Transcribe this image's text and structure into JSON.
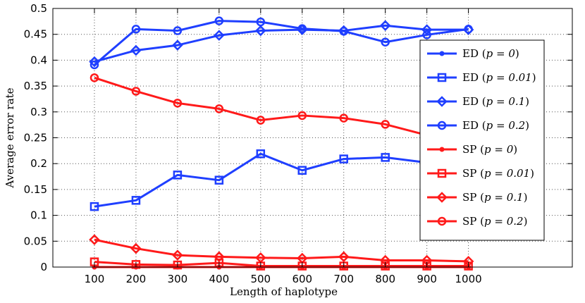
{
  "chart_data": {
    "type": "line",
    "title": "",
    "xlabel": "Length of haplotype",
    "ylabel": "Average error rate",
    "x": [
      100,
      200,
      300,
      400,
      500,
      600,
      700,
      800,
      900,
      1000
    ],
    "xlim": [
      0,
      1250
    ],
    "ylim": [
      0,
      0.5
    ],
    "xticks": [
      "100",
      "200",
      "300",
      "400",
      "500",
      "600",
      "700",
      "800",
      "900",
      "1000"
    ],
    "yticks": [
      "0",
      "0.05",
      "0.1",
      "0.15",
      "0.2",
      "0.25",
      "0.3",
      "0.35",
      "0.4",
      "0.45",
      "0.5"
    ],
    "grid": true,
    "legend_position": "right",
    "series": [
      {
        "name": "ED (p = 0)",
        "label": "ED",
        "param": "p = 0",
        "color": "#1f3fff",
        "marker": "point",
        "values": [
          0.0,
          0.0,
          0.0,
          0.0,
          0.0,
          0.0,
          0.0,
          0.0,
          0.0,
          0.0
        ]
      },
      {
        "name": "ED (p = 0.01)",
        "label": "ED",
        "param": "p = 0.01",
        "color": "#1f3fff",
        "marker": "square",
        "values": [
          0.117,
          0.129,
          0.178,
          0.168,
          0.219,
          0.187,
          0.209,
          0.212,
          0.202,
          0.194
        ]
      },
      {
        "name": "ED (p = 0.1)",
        "label": "ED",
        "param": "p = 0.1",
        "color": "#1f3fff",
        "marker": "diamond",
        "values": [
          0.397,
          0.419,
          0.429,
          0.448,
          0.457,
          0.459,
          0.457,
          0.467,
          0.459,
          0.459
        ]
      },
      {
        "name": "ED (p = 0.2)",
        "label": "ED",
        "param": "p = 0.2",
        "color": "#1f3fff",
        "marker": "circle",
        "values": [
          0.391,
          0.46,
          0.457,
          0.476,
          0.474,
          0.461,
          0.456,
          0.435,
          0.449,
          0.46
        ]
      },
      {
        "name": "SP (p = 0)",
        "label": "SP",
        "param": "p = 0",
        "color": "#ff1a1a",
        "marker": "point",
        "values": [
          0.0,
          0.0,
          0.0,
          0.0,
          0.0,
          0.0,
          0.0,
          0.0,
          0.0,
          0.0
        ]
      },
      {
        "name": "SP (p = 0.01)",
        "label": "SP",
        "param": "p = 0.01",
        "color": "#ff1a1a",
        "marker": "square",
        "values": [
          0.01,
          0.005,
          0.004,
          0.008,
          0.002,
          0.002,
          0.002,
          0.002,
          0.002,
          0.002
        ]
      },
      {
        "name": "SP (p = 0.1)",
        "label": "SP",
        "param": "p = 0.1",
        "color": "#ff1a1a",
        "marker": "diamond",
        "values": [
          0.053,
          0.036,
          0.023,
          0.02,
          0.018,
          0.017,
          0.02,
          0.013,
          0.013,
          0.011
        ]
      },
      {
        "name": "SP (p = 0.2)",
        "label": "SP",
        "param": "p = 0.2",
        "color": "#ff1a1a",
        "marker": "circle",
        "values": [
          0.366,
          0.34,
          0.317,
          0.306,
          0.284,
          0.293,
          0.288,
          0.276,
          0.255,
          0.252
        ]
      }
    ]
  }
}
